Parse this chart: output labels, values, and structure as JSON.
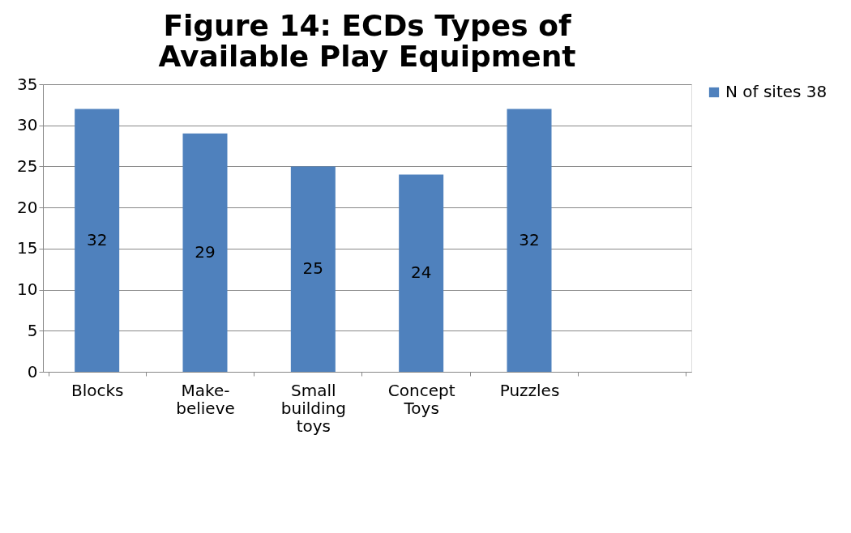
{
  "chart_data": {
    "type": "bar",
    "title": "Figure 14: ECDs Types of Available Play Equipment",
    "categories": [
      "Blocks",
      "Make-believe",
      "Small building toys",
      "Concept Toys",
      "Puzzles",
      null
    ],
    "series": [
      {
        "name": "N of sites 38",
        "color": "#4f81bd",
        "values": [
          32,
          29,
          25,
          24,
          32,
          null
        ]
      }
    ],
    "ylim": [
      0,
      35
    ],
    "yticks": [
      0,
      5,
      10,
      15,
      20,
      25,
      30,
      35
    ],
    "grid": "y",
    "legend": "right",
    "data_labels": true
  }
}
